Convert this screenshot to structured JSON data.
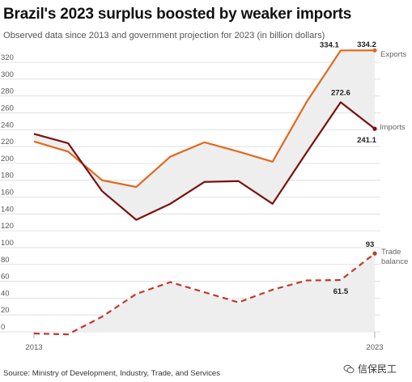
{
  "page": {
    "title": "Brazil's 2023 surplus boosted by weaker imports",
    "subtitle": "Observed data since 2013 and government projection for 2023 (in billion dollars)",
    "source": "Source: Ministry of Development, Industry, Trade, and Services",
    "watermark": "信保民工"
  },
  "colors": {
    "exports": "#e0691e",
    "imports": "#7b1010",
    "trade_balance": "#c0392b",
    "fill": "#eeeeee",
    "grid": "#d9d9d9"
  },
  "chart_data": {
    "type": "line",
    "title": "Brazil's 2023 surplus boosted by weaker imports",
    "subtitle": "Observed data since 2013 and government projection for 2023 (in billion dollars)",
    "x": [
      2013,
      2014,
      2015,
      2016,
      2017,
      2018,
      2019,
      2020,
      2021,
      2022,
      2023
    ],
    "x_tick_labels": [
      "2013",
      "2023"
    ],
    "ylim": [
      0,
      320
    ],
    "y_ticks": [
      0,
      20,
      40,
      60,
      80,
      100,
      120,
      140,
      160,
      180,
      200,
      220,
      240,
      260,
      280,
      300,
      320
    ],
    "grid": true,
    "series": [
      {
        "name": "Exports",
        "values": [
          226,
          214,
          180,
          172,
          208,
          225,
          214,
          202,
          273,
          334.1,
          334.2
        ],
        "style": "solid"
      },
      {
        "name": "Imports",
        "values": [
          235,
          224,
          167,
          133,
          152,
          178,
          179,
          152,
          213,
          272.6,
          241.1
        ],
        "style": "solid"
      },
      {
        "name": "Trade balance",
        "values": [
          -2,
          -3,
          18,
          45,
          59,
          47,
          35,
          50,
          61,
          61.5,
          93
        ],
        "style": "dashed"
      }
    ],
    "labels": {
      "exports": "Exports",
      "imports": "Imports",
      "trade_balance": "Trade balance"
    },
    "annotations": [
      {
        "series": "Exports",
        "x": 2022,
        "text": "334.1"
      },
      {
        "series": "Exports",
        "x": 2023,
        "text": "334.2"
      },
      {
        "series": "Imports",
        "x": 2022,
        "text": "272.6"
      },
      {
        "series": "Imports",
        "x": 2023,
        "text": "241.1"
      },
      {
        "series": "Trade balance",
        "x": 2022,
        "text": "61.5"
      },
      {
        "series": "Trade balance",
        "x": 2023,
        "text": "93"
      }
    ]
  }
}
